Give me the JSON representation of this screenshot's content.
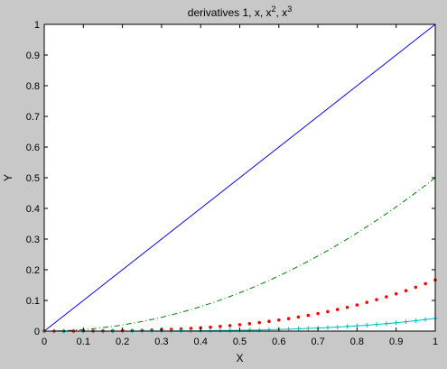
{
  "chart_data": {
    "type": "line",
    "title": "derivatives 1, x, x², x³",
    "title_parts": {
      "prefix": "derivatives 1, x, x",
      "exp1": "2",
      "middle": ", x",
      "exp2": "3"
    },
    "xlabel": "X",
    "ylabel": "Y",
    "xlim": [
      0,
      1
    ],
    "ylim": [
      0,
      1
    ],
    "xticks": [
      0,
      0.1,
      0.2,
      0.3,
      0.4,
      0.5,
      0.6,
      0.7,
      0.8,
      0.9,
      1
    ],
    "xtick_labels": [
      "0",
      "0.1",
      "0.2",
      "0.3",
      "0.4",
      "0.5",
      "0.6",
      "0.7",
      "0.8",
      "0.9",
      "1"
    ],
    "yticks": [
      0,
      0.1,
      0.2,
      0.3,
      0.4,
      0.5,
      0.6,
      0.7,
      0.8,
      0.9,
      1
    ],
    "ytick_labels": [
      "0",
      "0.1",
      "0.2",
      "0.3",
      "0.4",
      "0.5",
      "0.6",
      "0.7",
      "0.8",
      "0.9",
      "1"
    ],
    "grid": false,
    "background": "#c8c8c8",
    "axes_background": "#ffffff",
    "x": [
      0,
      0.025,
      0.05,
      0.075,
      0.1,
      0.125,
      0.15,
      0.175,
      0.2,
      0.225,
      0.25,
      0.275,
      0.3,
      0.325,
      0.35,
      0.375,
      0.4,
      0.425,
      0.45,
      0.475,
      0.5,
      0.525,
      0.55,
      0.575,
      0.6,
      0.625,
      0.65,
      0.675,
      0.7,
      0.725,
      0.75,
      0.775,
      0.8,
      0.825,
      0.85,
      0.875,
      0.9,
      0.925,
      0.95,
      0.975,
      1
    ],
    "series": [
      {
        "style": "solid",
        "color": "#0000ff",
        "values": [
          0,
          0.025,
          0.05,
          0.075,
          0.1,
          0.125,
          0.15,
          0.175,
          0.2,
          0.225,
          0.25,
          0.275,
          0.3,
          0.325,
          0.35,
          0.375,
          0.4,
          0.425,
          0.45,
          0.475,
          0.5,
          0.525,
          0.55,
          0.575,
          0.6,
          0.625,
          0.65,
          0.675,
          0.7,
          0.725,
          0.75,
          0.775,
          0.8,
          0.825,
          0.85,
          0.875,
          0.9,
          0.925,
          0.95,
          0.975,
          1
        ]
      },
      {
        "style": "dashdot",
        "color": "#007f00",
        "values": [
          0,
          0.0003,
          0.0013,
          0.0028,
          0.005,
          0.0078,
          0.0113,
          0.0153,
          0.02,
          0.0253,
          0.0313,
          0.0378,
          0.045,
          0.0528,
          0.0613,
          0.0703,
          0.08,
          0.0903,
          0.1013,
          0.1128,
          0.125,
          0.1378,
          0.1513,
          0.1653,
          0.18,
          0.1953,
          0.2113,
          0.2278,
          0.245,
          0.2628,
          0.2813,
          0.3003,
          0.32,
          0.3403,
          0.3613,
          0.3828,
          0.405,
          0.4278,
          0.4513,
          0.4753,
          0.5
        ]
      },
      {
        "style": "dots",
        "color": "#ff0000",
        "values": [
          0,
          0,
          0,
          0.0001,
          0.0002,
          0.0003,
          0.0006,
          0.0009,
          0.0013,
          0.0019,
          0.0026,
          0.0035,
          0.0045,
          0.0057,
          0.0071,
          0.0088,
          0.0107,
          0.0128,
          0.0152,
          0.0179,
          0.0208,
          0.0241,
          0.0277,
          0.0317,
          0.036,
          0.0407,
          0.0458,
          0.0513,
          0.0572,
          0.0635,
          0.0703,
          0.0776,
          0.0853,
          0.0936,
          0.1024,
          0.1117,
          0.1215,
          0.1319,
          0.1429,
          0.1545,
          0.1667
        ]
      },
      {
        "style": "line-plus",
        "color": "#00bfbf",
        "values": [
          0,
          0,
          0,
          0,
          0,
          0,
          0,
          0,
          0.0001,
          0.0001,
          0.0002,
          0.0002,
          0.0003,
          0.0005,
          0.0006,
          0.0008,
          0.0011,
          0.0014,
          0.0017,
          0.0021,
          0.0026,
          0.0032,
          0.0038,
          0.0046,
          0.0054,
          0.0064,
          0.0074,
          0.0087,
          0.01,
          0.0115,
          0.0132,
          0.015,
          0.0171,
          0.0193,
          0.0218,
          0.0244,
          0.0273,
          0.0305,
          0.0339,
          0.0377,
          0.0417
        ]
      }
    ]
  }
}
